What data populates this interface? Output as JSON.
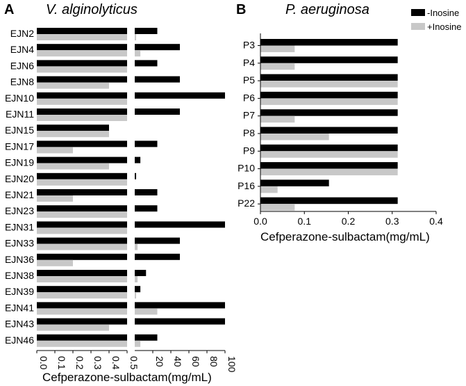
{
  "chart_data": [
    {
      "panel": "A",
      "title": "V. alginolyticus",
      "type": "bar",
      "orientation": "horizontal",
      "broken_axis": true,
      "xlabel": "Cefperazone-sulbactam(mg/mL)",
      "segments": [
        {
          "range": [
            0,
            0.5
          ],
          "ticks": [
            "0.0",
            "0.1",
            "0.2",
            "0.3",
            "0.4",
            "0.5"
          ],
          "tick_values": [
            0,
            0.1,
            0.2,
            0.3,
            0.4,
            0.5
          ]
        },
        {
          "range": [
            0,
            100
          ],
          "ticks": [
            "20",
            "40",
            "60",
            "80",
            "100"
          ],
          "tick_values": [
            20,
            40,
            60,
            80,
            100
          ]
        }
      ],
      "categories": [
        "EJN2",
        "EJN4",
        "EJN6",
        "EJN8",
        "EJN10",
        "EJN11",
        "EJN15",
        "EJN17",
        "EJN19",
        "EJN20",
        "EJN21",
        "EJN23",
        "EJN31",
        "EJN33",
        "EJN36",
        "EJN38",
        "EJN39",
        "EJN41",
        "EJN43",
        "EJN46"
      ],
      "series": [
        {
          "name": "-Inosine",
          "color": "#000000",
          "values": [
            25,
            50,
            25,
            50,
            100,
            50,
            0.4,
            25,
            6.25,
            1.56,
            25,
            25,
            100,
            50,
            50,
            12.5,
            6.25,
            100,
            100,
            25
          ]
        },
        {
          "name": "+Inosine",
          "color": "#c8c8c8",
          "values": [
            1.56,
            6.25,
            0.5,
            0.4,
            0.5,
            0.5,
            0.4,
            0.2,
            0.4,
            0.5,
            0.2,
            0.5,
            0.5,
            3.12,
            0.2,
            3.12,
            1.56,
            25,
            0.4,
            6.25
          ]
        }
      ]
    },
    {
      "panel": "B",
      "title": "P. aeruginosa",
      "type": "bar",
      "orientation": "horizontal",
      "xlabel": "Cefperazone-sulbactam(mg/mL)",
      "xlim": [
        0,
        0.4
      ],
      "ticks": [
        "0.0",
        "0.1",
        "0.2",
        "0.3",
        "0.4"
      ],
      "tick_values": [
        0,
        0.1,
        0.2,
        0.3,
        0.4
      ],
      "categories": [
        "P3",
        "P4",
        "P5",
        "P6",
        "P7",
        "P8",
        "P9",
        "P10",
        "P16",
        "P22"
      ],
      "series": [
        {
          "name": "-Inosine",
          "color": "#000000",
          "values": [
            0.3125,
            0.3125,
            0.3125,
            0.3125,
            0.3125,
            0.3125,
            0.3125,
            0.3125,
            0.156,
            0.3125
          ]
        },
        {
          "name": "+Inosine",
          "color": "#c8c8c8",
          "values": [
            0.078,
            0.078,
            0.3125,
            0.3125,
            0.078,
            0.156,
            0.3125,
            0.3125,
            0.039,
            0.078
          ]
        }
      ]
    }
  ],
  "legend": {
    "placement": "top-right",
    "items": [
      {
        "label": "-Inosine",
        "color": "#000000"
      },
      {
        "label": "+Inosine",
        "color": "#c8c8c8"
      }
    ]
  }
}
